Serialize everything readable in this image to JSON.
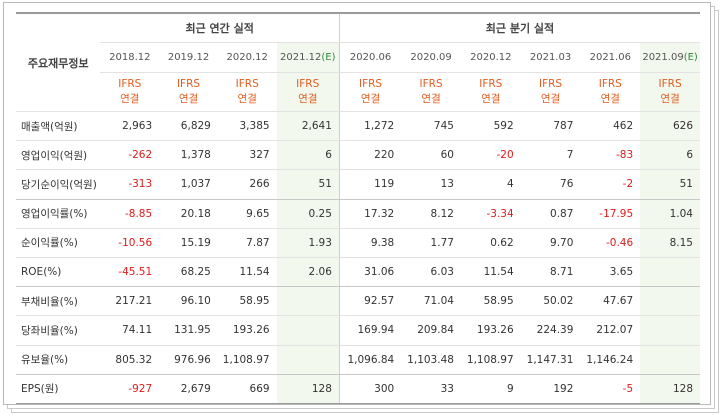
{
  "table": {
    "row_header_label": "주요재무정보",
    "groups": {
      "annual": "최근 연간 실적",
      "quarterly": "최근 분기 실적"
    },
    "periods": [
      {
        "date": "2018.12",
        "est": ""
      },
      {
        "date": "2019.12",
        "est": ""
      },
      {
        "date": "2020.12",
        "est": ""
      },
      {
        "date": "2021.12",
        "est": "(E)"
      },
      {
        "date": "2020.06",
        "est": ""
      },
      {
        "date": "2020.09",
        "est": ""
      },
      {
        "date": "2020.12",
        "est": ""
      },
      {
        "date": "2021.03",
        "est": ""
      },
      {
        "date": "2021.06",
        "est": ""
      },
      {
        "date": "2021.09",
        "est": "(E)"
      }
    ],
    "accounting_line1": "IFRS",
    "accounting_line2": "연결",
    "rows": [
      {
        "label": "매출액(억원)",
        "values": [
          "2,963",
          "6,829",
          "3,385",
          "2,641",
          "1,272",
          "745",
          "592",
          "787",
          "462",
          "626"
        ]
      },
      {
        "label": "영업이익(억원)",
        "values": [
          "-262",
          "1,378",
          "327",
          "6",
          "220",
          "60",
          "-20",
          "7",
          "-83",
          "6"
        ]
      },
      {
        "label": "당기순이익(억원)",
        "values": [
          "-313",
          "1,037",
          "266",
          "51",
          "119",
          "13",
          "4",
          "76",
          "-2",
          "51"
        ]
      },
      {
        "label": "영업이익률(%)",
        "values": [
          "-8.85",
          "20.18",
          "9.65",
          "0.25",
          "17.32",
          "8.12",
          "-3.34",
          "0.87",
          "-17.95",
          "1.04"
        ]
      },
      {
        "label": "순이익률(%)",
        "values": [
          "-10.56",
          "15.19",
          "7.87",
          "1.93",
          "9.38",
          "1.77",
          "0.62",
          "9.70",
          "-0.46",
          "8.15"
        ]
      },
      {
        "label": "ROE(%)",
        "values": [
          "-45.51",
          "68.25",
          "11.54",
          "2.06",
          "31.06",
          "6.03",
          "11.54",
          "8.71",
          "3.65",
          ""
        ]
      },
      {
        "label": "부채비율(%)",
        "values": [
          "217.21",
          "96.10",
          "58.95",
          "",
          "92.57",
          "71.04",
          "58.95",
          "50.02",
          "47.67",
          ""
        ]
      },
      {
        "label": "당좌비율(%)",
        "values": [
          "74.11",
          "131.95",
          "193.26",
          "",
          "169.94",
          "209.84",
          "193.26",
          "224.39",
          "212.07",
          ""
        ]
      },
      {
        "label": "유보율(%)",
        "values": [
          "805.32",
          "976.96",
          "1,108.97",
          "",
          "1,096.84",
          "1,103.48",
          "1,108.97",
          "1,147.31",
          "1,146.24",
          ""
        ]
      },
      {
        "label": "EPS(원)",
        "values": [
          "-927",
          "2,679",
          "669",
          "128",
          "300",
          "33",
          "9",
          "192",
          "-5",
          "128"
        ]
      }
    ]
  }
}
